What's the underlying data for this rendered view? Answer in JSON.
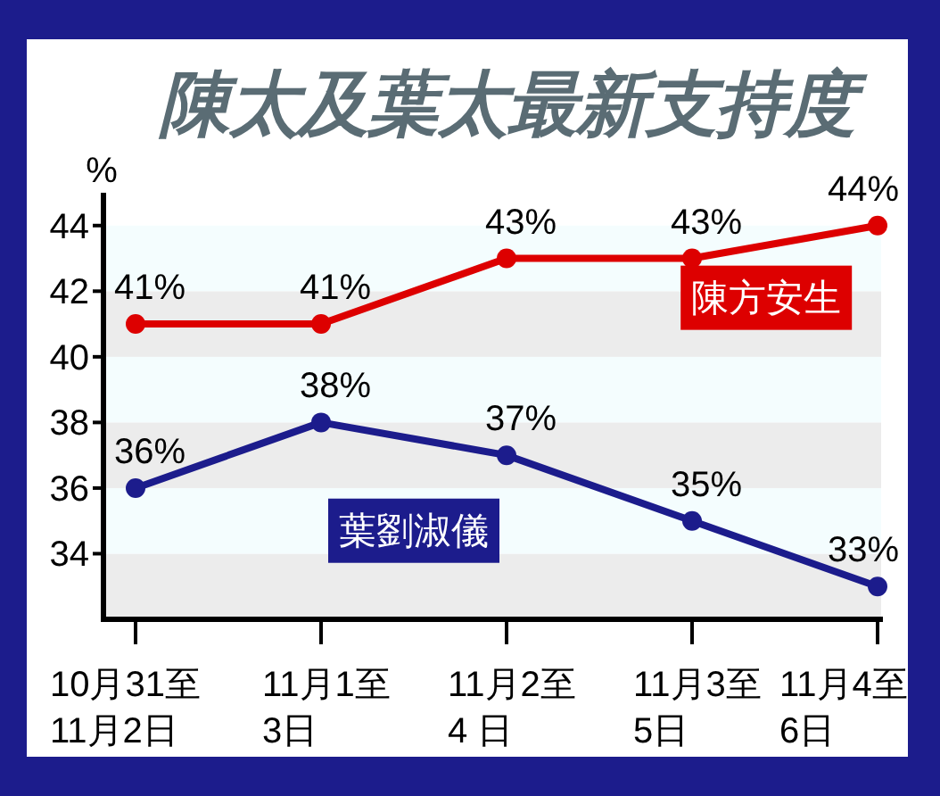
{
  "chart_data": {
    "type": "line",
    "title": "陳太及葉太最新支持度",
    "ylabel": "%",
    "categories": [
      "10月31至\n11月2日",
      "11月1至\n3日",
      "11月2至\n4 日",
      "11月3至\n5日",
      "11月4至\n6日"
    ],
    "series": [
      {
        "name": "陳方安生",
        "color": "#dd0000",
        "values": [
          41,
          41,
          43,
          43,
          44
        ],
        "value_labels": [
          "41%",
          "41%",
          "43%",
          "43%",
          "44%"
        ]
      },
      {
        "name": "葉劉淑儀",
        "color": "#1c1c8c",
        "values": [
          36,
          38,
          37,
          35,
          33
        ],
        "value_labels": [
          "36%",
          "38%",
          "37%",
          "35%",
          "33%"
        ]
      }
    ],
    "ylim": [
      32,
      45
    ],
    "yticks": [
      34,
      36,
      38,
      40,
      42,
      44
    ],
    "bands": [
      {
        "axis": "y",
        "from": 32,
        "to": 34,
        "color": "#ececec"
      },
      {
        "axis": "y",
        "from": 34,
        "to": 36,
        "color": "#f4fdfe"
      },
      {
        "axis": "y",
        "from": 36,
        "to": 38,
        "color": "#ececec"
      },
      {
        "axis": "y",
        "from": 38,
        "to": 40,
        "color": "#f4fdfe"
      },
      {
        "axis": "y",
        "from": 40,
        "to": 42,
        "color": "#ececec"
      },
      {
        "axis": "y",
        "from": 42,
        "to": 44,
        "color": "#f4fdfe"
      }
    ],
    "marker": "circle",
    "line_style": "solid",
    "legend": false,
    "grid": false
  }
}
